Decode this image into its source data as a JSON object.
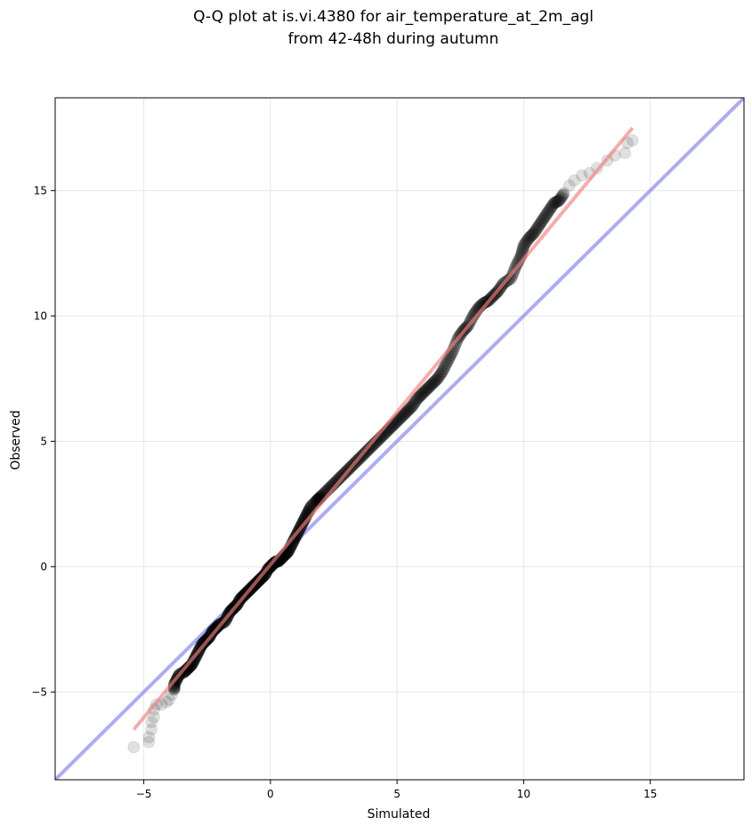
{
  "chart_data": {
    "type": "scatter",
    "title": "Q-Q plot at is.vi.4380 for air_temperature_at_2m_agl",
    "subtitle": "from 42-48h during autumn",
    "xlabel": "Simulated",
    "ylabel": "Observed",
    "xlim": [
      -8.5,
      18.7
    ],
    "ylim": [
      -8.5,
      18.7
    ],
    "xticks": [
      -5,
      0,
      5,
      10,
      15
    ],
    "yticks": [
      -5,
      0,
      5,
      10,
      15
    ],
    "xtick_labels": [
      "−5",
      "0",
      "5",
      "10",
      "15"
    ],
    "ytick_labels": [
      "−5",
      "0",
      "5",
      "10",
      "15"
    ],
    "grid": true,
    "legend": "none",
    "colors": {
      "points": "#000000",
      "fit_line": "#f08080",
      "identity_line": "#8080f0",
      "grid": "#e6e6e6"
    },
    "fit_line": {
      "x": [
        -5.4,
        14.3
      ],
      "y": [
        -6.5,
        17.5
      ]
    },
    "identity_line": {
      "x": [
        -8.5,
        18.7
      ],
      "y": [
        -8.5,
        18.7
      ]
    },
    "quantile_points": [
      [
        -5.4,
        -7.2
      ],
      [
        -4.8,
        -7.0
      ],
      [
        -4.8,
        -6.8
      ],
      [
        -4.7,
        -6.5
      ],
      [
        -4.7,
        -6.2
      ],
      [
        -4.6,
        -6.0
      ],
      [
        -4.6,
        -5.7
      ],
      [
        -4.5,
        -5.5
      ],
      [
        -4.3,
        -5.5
      ],
      [
        -4.1,
        -5.4
      ],
      [
        -4.0,
        -5.3
      ],
      [
        -3.9,
        -5.1
      ],
      [
        -3.8,
        -4.9
      ],
      [
        -3.8,
        -4.7
      ],
      [
        -3.7,
        -4.5
      ],
      [
        -3.6,
        -4.3
      ],
      [
        -3.4,
        -4.2
      ],
      [
        -3.3,
        -4.1
      ],
      [
        -3.2,
        -4.0
      ],
      [
        -3.1,
        -3.9
      ],
      [
        -3.0,
        -3.7
      ],
      [
        -2.9,
        -3.5
      ],
      [
        -2.8,
        -3.3
      ],
      [
        -2.7,
        -3.1
      ],
      [
        -2.6,
        -3.0
      ],
      [
        -2.5,
        -2.9
      ],
      [
        -2.4,
        -2.8
      ],
      [
        -2.3,
        -2.6
      ],
      [
        -2.2,
        -2.5
      ],
      [
        -2.1,
        -2.4
      ],
      [
        -2.0,
        -2.3
      ],
      [
        -1.8,
        -2.2
      ],
      [
        -1.7,
        -2.0
      ],
      [
        -1.6,
        -1.8
      ],
      [
        -1.5,
        -1.7
      ],
      [
        -1.4,
        -1.6
      ],
      [
        -1.3,
        -1.5
      ],
      [
        -1.2,
        -1.3
      ],
      [
        -1.1,
        -1.2
      ],
      [
        -1.0,
        -1.1
      ],
      [
        -0.9,
        -1.0
      ],
      [
        -0.8,
        -0.9
      ],
      [
        -0.7,
        -0.8
      ],
      [
        -0.6,
        -0.7
      ],
      [
        -0.5,
        -0.6
      ],
      [
        -0.4,
        -0.5
      ],
      [
        -0.3,
        -0.4
      ],
      [
        -0.2,
        -0.3
      ],
      [
        -0.1,
        -0.1
      ],
      [
        0.0,
        0.0
      ],
      [
        0.1,
        0.1
      ],
      [
        0.2,
        0.2
      ],
      [
        0.3,
        0.2
      ],
      [
        0.4,
        0.3
      ],
      [
        0.5,
        0.4
      ],
      [
        0.6,
        0.5
      ],
      [
        0.7,
        0.6
      ],
      [
        0.8,
        0.8
      ],
      [
        0.9,
        1.0
      ],
      [
        1.0,
        1.2
      ],
      [
        1.1,
        1.4
      ],
      [
        1.2,
        1.6
      ],
      [
        1.3,
        1.8
      ],
      [
        1.4,
        2.0
      ],
      [
        1.5,
        2.2
      ],
      [
        1.6,
        2.4
      ],
      [
        1.8,
        2.6
      ],
      [
        1.9,
        2.7
      ],
      [
        2.0,
        2.8
      ],
      [
        2.2,
        3.0
      ],
      [
        2.4,
        3.2
      ],
      [
        2.6,
        3.4
      ],
      [
        2.8,
        3.6
      ],
      [
        3.0,
        3.8
      ],
      [
        3.2,
        4.0
      ],
      [
        3.4,
        4.2
      ],
      [
        3.6,
        4.4
      ],
      [
        3.8,
        4.6
      ],
      [
        4.0,
        4.8
      ],
      [
        4.2,
        5.0
      ],
      [
        4.4,
        5.2
      ],
      [
        4.6,
        5.4
      ],
      [
        4.8,
        5.6
      ],
      [
        5.0,
        5.8
      ],
      [
        5.2,
        6.0
      ],
      [
        5.4,
        6.2
      ],
      [
        5.6,
        6.4
      ],
      [
        5.8,
        6.7
      ],
      [
        6.0,
        6.9
      ],
      [
        6.2,
        7.1
      ],
      [
        6.4,
        7.3
      ],
      [
        6.6,
        7.5
      ],
      [
        6.8,
        7.8
      ],
      [
        7.0,
        8.2
      ],
      [
        7.2,
        8.6
      ],
      [
        7.4,
        9.1
      ],
      [
        7.6,
        9.4
      ],
      [
        7.8,
        9.6
      ],
      [
        8.0,
        10.0
      ],
      [
        8.2,
        10.3
      ],
      [
        8.4,
        10.5
      ],
      [
        8.6,
        10.6
      ],
      [
        8.8,
        10.8
      ],
      [
        9.0,
        11.0
      ],
      [
        9.2,
        11.3
      ],
      [
        9.5,
        11.5
      ],
      [
        9.7,
        12.0
      ],
      [
        9.9,
        12.4
      ],
      [
        10.0,
        12.8
      ],
      [
        10.2,
        13.1
      ],
      [
        10.4,
        13.3
      ],
      [
        10.6,
        13.6
      ],
      [
        10.8,
        13.9
      ],
      [
        11.0,
        14.2
      ],
      [
        11.2,
        14.5
      ],
      [
        11.4,
        14.6
      ],
      [
        11.6,
        14.9
      ],
      [
        11.8,
        15.2
      ],
      [
        12.0,
        15.4
      ],
      [
        12.3,
        15.6
      ],
      [
        12.6,
        15.7
      ],
      [
        12.9,
        15.9
      ],
      [
        13.3,
        16.2
      ],
      [
        13.6,
        16.4
      ],
      [
        14.0,
        16.5
      ],
      [
        14.1,
        16.9
      ],
      [
        14.3,
        17.0
      ]
    ]
  }
}
